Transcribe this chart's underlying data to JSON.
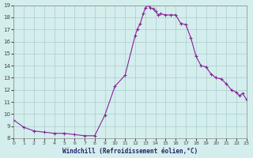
{
  "title": "",
  "xlabel": "Windchill (Refroidissement éolien,°C)",
  "ylabel": "",
  "bg_color": "#d4eeed",
  "grid_color": "#aacccc",
  "line_color": "#882299",
  "marker_color": "#882299",
  "xlim": [
    0,
    23
  ],
  "ylim": [
    8,
    19
  ],
  "yticks": [
    8,
    9,
    10,
    11,
    12,
    13,
    14,
    15,
    16,
    17,
    18,
    19
  ],
  "xticks": [
    0,
    1,
    2,
    3,
    4,
    5,
    6,
    7,
    8,
    9,
    10,
    11,
    12,
    13,
    14,
    15,
    16,
    17,
    18,
    19,
    20,
    21,
    22,
    23
  ],
  "x": [
    0,
    1,
    2,
    3,
    4,
    5,
    6,
    7,
    8,
    9,
    10,
    11,
    12,
    12.2,
    12.5,
    12.8,
    13,
    13.3,
    13.5,
    13.8,
    14,
    14.3,
    14.5,
    15,
    15.5,
    16,
    16.5,
    17,
    17.5,
    18,
    18.5,
    19,
    19.5,
    20,
    20.5,
    21,
    21.5,
    22,
    22.3,
    22.6,
    23
  ],
  "y": [
    9.5,
    8.9,
    8.6,
    8.5,
    8.4,
    8.4,
    8.3,
    8.2,
    8.2,
    9.9,
    12.3,
    13.2,
    16.5,
    17.0,
    17.5,
    18.3,
    18.8,
    19.0,
    18.8,
    18.7,
    18.5,
    18.2,
    18.3,
    18.2,
    18.2,
    18.2,
    17.5,
    17.4,
    16.3,
    14.8,
    14.0,
    13.9,
    13.3,
    13.0,
    12.9,
    12.5,
    12.0,
    11.8,
    11.5,
    11.7,
    11.2
  ]
}
